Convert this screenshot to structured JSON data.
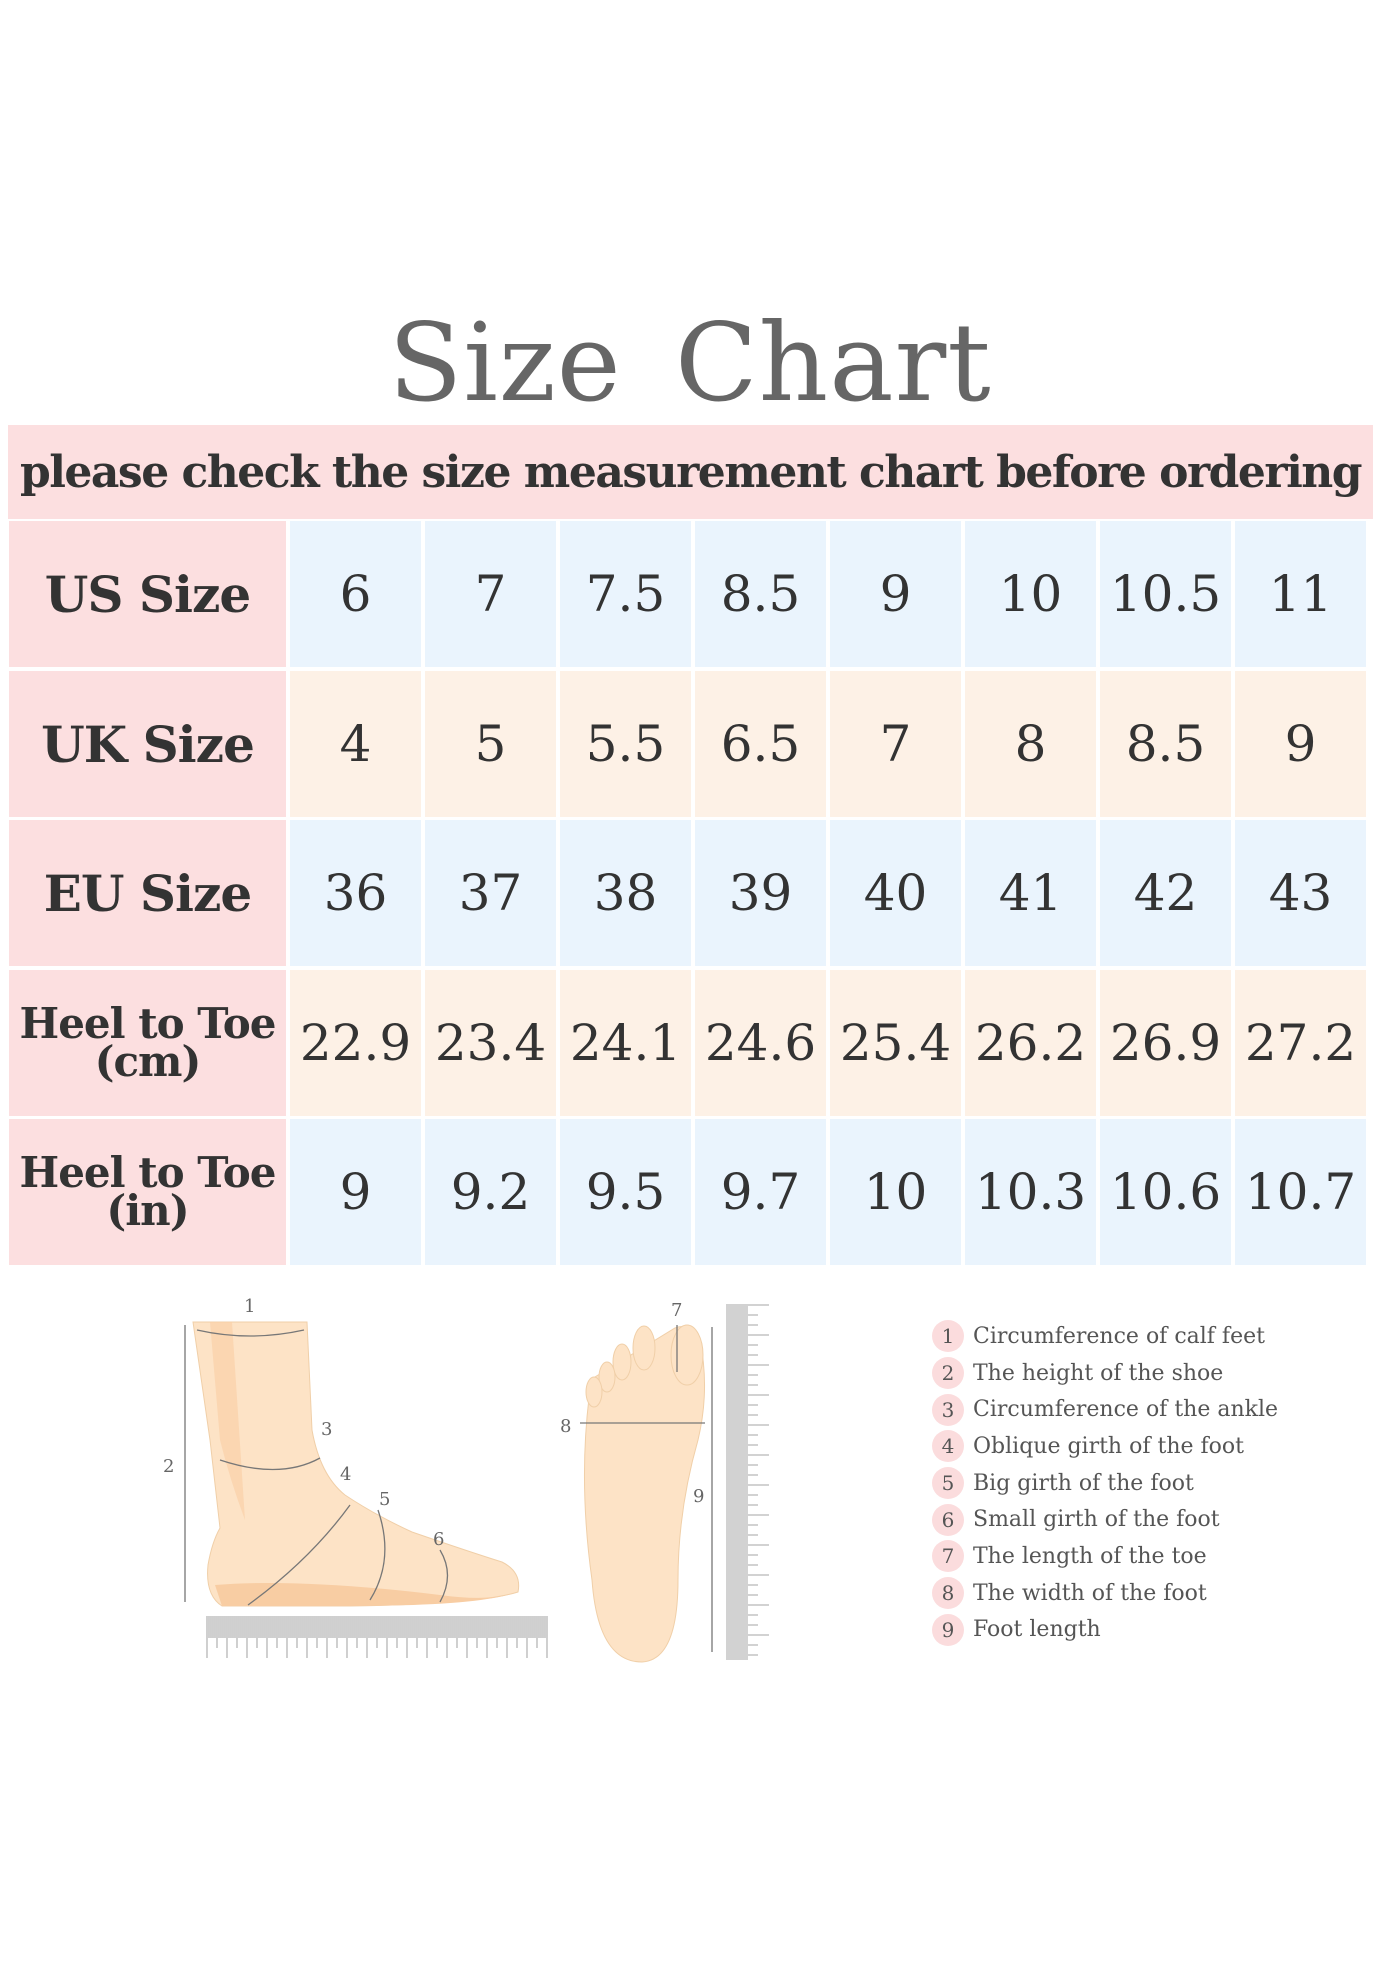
{
  "title": "Size  Chart",
  "banner": "please check the size measurement chart before ordering",
  "colors": {
    "label_bg": "#fcdfe0",
    "row_blue": "#eaf4fd",
    "row_peach": "#fdf1e6",
    "text": "#333333"
  },
  "table": {
    "rows": [
      {
        "label": "US Size",
        "values": [
          "6",
          "7",
          "7.5",
          "8.5",
          "9",
          "10",
          "10.5",
          "11"
        ]
      },
      {
        "label": "UK Size",
        "values": [
          "4",
          "5",
          "5.5",
          "6.5",
          "7",
          "8",
          "8.5",
          "9"
        ]
      },
      {
        "label": "EU Size",
        "values": [
          "36",
          "37",
          "38",
          "39",
          "40",
          "41",
          "42",
          "43"
        ]
      },
      {
        "label_line1": "Heel to Toe",
        "label_line2": "(cm)",
        "values": [
          "22.9",
          "23.4",
          "24.1",
          "24.6",
          "25.4",
          "26.2",
          "26.9",
          "27.2"
        ]
      },
      {
        "label_line1": "Heel to Toe",
        "label_line2": "(in)",
        "values": [
          "9",
          "9.2",
          "9.5",
          "9.7",
          "10",
          "10.3",
          "10.6",
          "10.7"
        ]
      }
    ]
  },
  "diagram_labels": [
    "1",
    "2",
    "3",
    "4",
    "5",
    "6",
    "7",
    "8",
    "9"
  ],
  "legend": [
    {
      "n": "1",
      "text": "Circumference of calf feet"
    },
    {
      "n": "2",
      "text": "The height of the shoe"
    },
    {
      "n": "3",
      "text": "Circumference of the ankle"
    },
    {
      "n": "4",
      "text": "Oblique girth of the foot"
    },
    {
      "n": "5",
      "text": "Big girth of the foot"
    },
    {
      "n": "6",
      "text": "Small girth of the foot"
    },
    {
      "n": "7",
      "text": "The length of the toe"
    },
    {
      "n": "8",
      "text": "The width of the foot"
    },
    {
      "n": "9",
      "text": "Foot length"
    }
  ]
}
